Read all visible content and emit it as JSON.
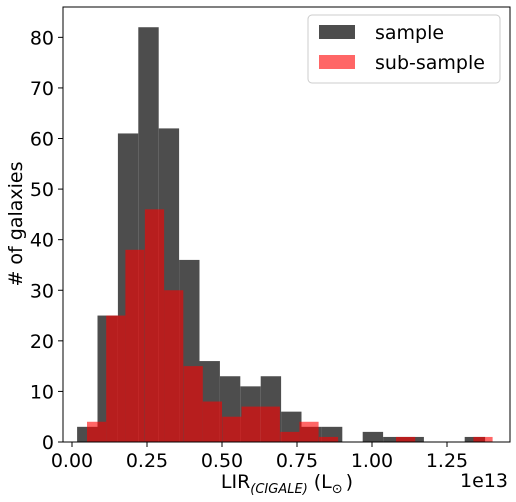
{
  "chart_data": {
    "type": "bar",
    "subtype": "overlaid-histogram",
    "xlabel_main": "LIR",
    "xlabel_sub": "(CIGALE)",
    "xlabel_unit": "(L",
    "xlabel_unit_sub": "⊙",
    "xlabel_unit_close": ")",
    "ylabel": "# of galaxies",
    "offset_text": "1e13",
    "xlim": [
      -0.03,
      1.46
    ],
    "ylim": [
      0,
      86
    ],
    "xticks": [
      0.0,
      0.25,
      0.5,
      0.75,
      1.0,
      1.25
    ],
    "xtick_labels": [
      "0.00",
      "0.25",
      "0.50",
      "0.75",
      "1.00",
      "1.25"
    ],
    "yticks": [
      0,
      10,
      20,
      30,
      40,
      50,
      60,
      70,
      80
    ],
    "ytick_labels": [
      "0",
      "10",
      "20",
      "30",
      "40",
      "50",
      "60",
      "70",
      "80"
    ],
    "legend_position": "upper right",
    "grid": false,
    "series": [
      {
        "name": "sample",
        "color": "#4d4d4d",
        "bins": [
          [
            0.017,
            0.034,
            3
          ],
          [
            0.085,
            0.102,
            25
          ],
          [
            0.153,
            0.17,
            61
          ],
          [
            0.221,
            0.238,
            82
          ],
          [
            0.289,
            0.306,
            62
          ],
          [
            0.357,
            0.374,
            36
          ],
          [
            0.425,
            0.442,
            16
          ],
          [
            0.493,
            0.51,
            13
          ],
          [
            0.561,
            0.578,
            11
          ],
          [
            0.629,
            0.646,
            13
          ],
          [
            0.697,
            0.714,
            6
          ],
          [
            0.765,
            0.782,
            3
          ],
          [
            0.833,
            0.85,
            3
          ],
          [
            0.901,
            0.918,
            0
          ],
          [
            0.969,
            0.986,
            2
          ],
          [
            1.037,
            1.054,
            1
          ],
          [
            1.105,
            1.122,
            1
          ],
          [
            1.173,
            1.19,
            0
          ],
          [
            1.241,
            1.258,
            0
          ],
          [
            1.309,
            1.326,
            1
          ]
        ]
      },
      {
        "name": "sub-sample",
        "color": "#ff0000",
        "alpha": 0.6,
        "bins": [
          [
            0.05,
            0.051,
            4
          ],
          [
            0.114,
            0.115,
            25
          ],
          [
            0.178,
            0.179,
            38
          ],
          [
            0.243,
            0.244,
            46
          ],
          [
            0.307,
            0.308,
            30
          ],
          [
            0.372,
            0.373,
            15
          ],
          [
            0.436,
            0.437,
            8
          ],
          [
            0.501,
            0.502,
            5
          ],
          [
            0.565,
            0.566,
            7
          ],
          [
            0.629,
            0.63,
            7
          ],
          [
            0.694,
            0.695,
            2
          ],
          [
            0.758,
            0.759,
            4
          ],
          [
            0.823,
            0.824,
            1
          ],
          [
            0.887,
            0.888,
            0
          ],
          [
            0.951,
            0.952,
            0
          ],
          [
            1.016,
            1.017,
            0
          ],
          [
            1.08,
            1.081,
            1
          ],
          [
            1.145,
            1.146,
            0
          ],
          [
            1.209,
            1.21,
            0
          ],
          [
            1.273,
            1.274,
            0
          ],
          [
            1.338,
            1.339,
            1
          ]
        ]
      }
    ]
  }
}
